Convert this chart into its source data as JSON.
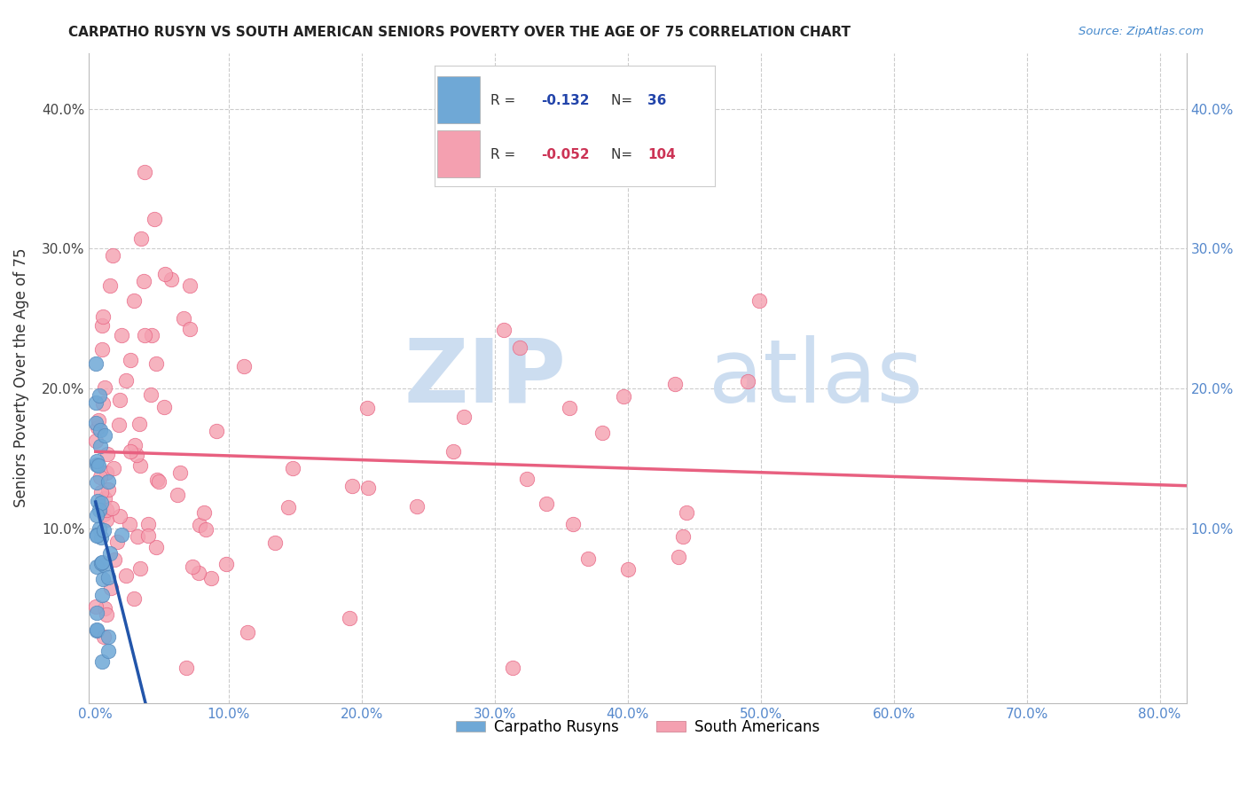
{
  "title": "CARPATHO RUSYN VS SOUTH AMERICAN SENIORS POVERTY OVER THE AGE OF 75 CORRELATION CHART",
  "source": "Source: ZipAtlas.com",
  "ylabel": "Seniors Poverty Over the Age of 75",
  "xlabel_ticks": [
    "0.0%",
    "10.0%",
    "20.0%",
    "30.0%",
    "40.0%",
    "50.0%",
    "60.0%",
    "70.0%",
    "80.0%"
  ],
  "right_ytick_labels": [
    "10.0%",
    "20.0%",
    "30.0%",
    "40.0%"
  ],
  "legend_blue_label": "Carpatho Rusyns",
  "legend_pink_label": "South Americans",
  "R_blue": "-0.132",
  "N_blue": "36",
  "R_pink": "-0.052",
  "N_pink": "104",
  "blue_color": "#6fa8d6",
  "pink_color": "#f4a0b0",
  "blue_line_color": "#2255aa",
  "pink_line_color": "#e86080",
  "xlim": [
    -0.005,
    0.82
  ],
  "ylim": [
    -0.025,
    0.44
  ]
}
